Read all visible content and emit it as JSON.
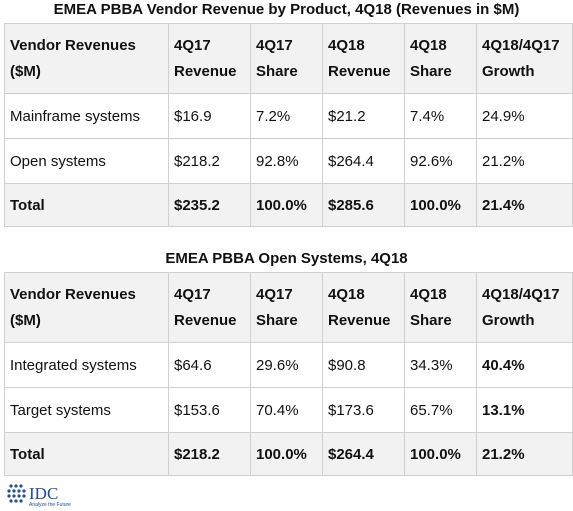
{
  "table1": {
    "title": "EMEA PBBA Vendor Revenue by Product, 4Q18 (Revenues in $M)",
    "headers": [
      "Vendor Revenues ($M)",
      "4Q17 Revenue",
      "4Q17 Share",
      "4Q18 Revenue",
      "4Q18 Share",
      "4Q18/4Q17 Growth"
    ],
    "rows": [
      [
        "Mainframe systems",
        "$16.9",
        "7.2%",
        "$21.2",
        "7.4%",
        "24.9%"
      ],
      [
        "Open systems",
        "$218.2",
        "92.8%",
        "$264.4",
        "92.6%",
        "21.2%"
      ],
      [
        "Total",
        "$235.2",
        "100.0%",
        "$285.6",
        "100.0%",
        "21.4%"
      ]
    ]
  },
  "table2": {
    "title": "EMEA PBBA Open Systems, 4Q18",
    "headers": [
      "Vendor Revenues ($M)",
      "4Q17 Revenue",
      "4Q17 Share",
      "4Q18 Revenue",
      "4Q18 Share",
      "4Q18/4Q17 Growth"
    ],
    "rows": [
      [
        "Integrated systems",
        "$64.6",
        "29.6%",
        "$90.8",
        "34.3%",
        "40.4%"
      ],
      [
        "Target systems",
        "$153.6",
        "70.4%",
        "$173.6",
        "65.7%",
        "13.1%"
      ],
      [
        "Total",
        "$218.2",
        "100.0%",
        "$264.4",
        "100.0%",
        "21.2%"
      ]
    ]
  },
  "logo": {
    "text": "IDC",
    "tagline": "Analyze the Future",
    "color": "#1f4e9a"
  },
  "colors": {
    "header_bg": "#f2f2f2",
    "border": "#d0d0d0"
  }
}
